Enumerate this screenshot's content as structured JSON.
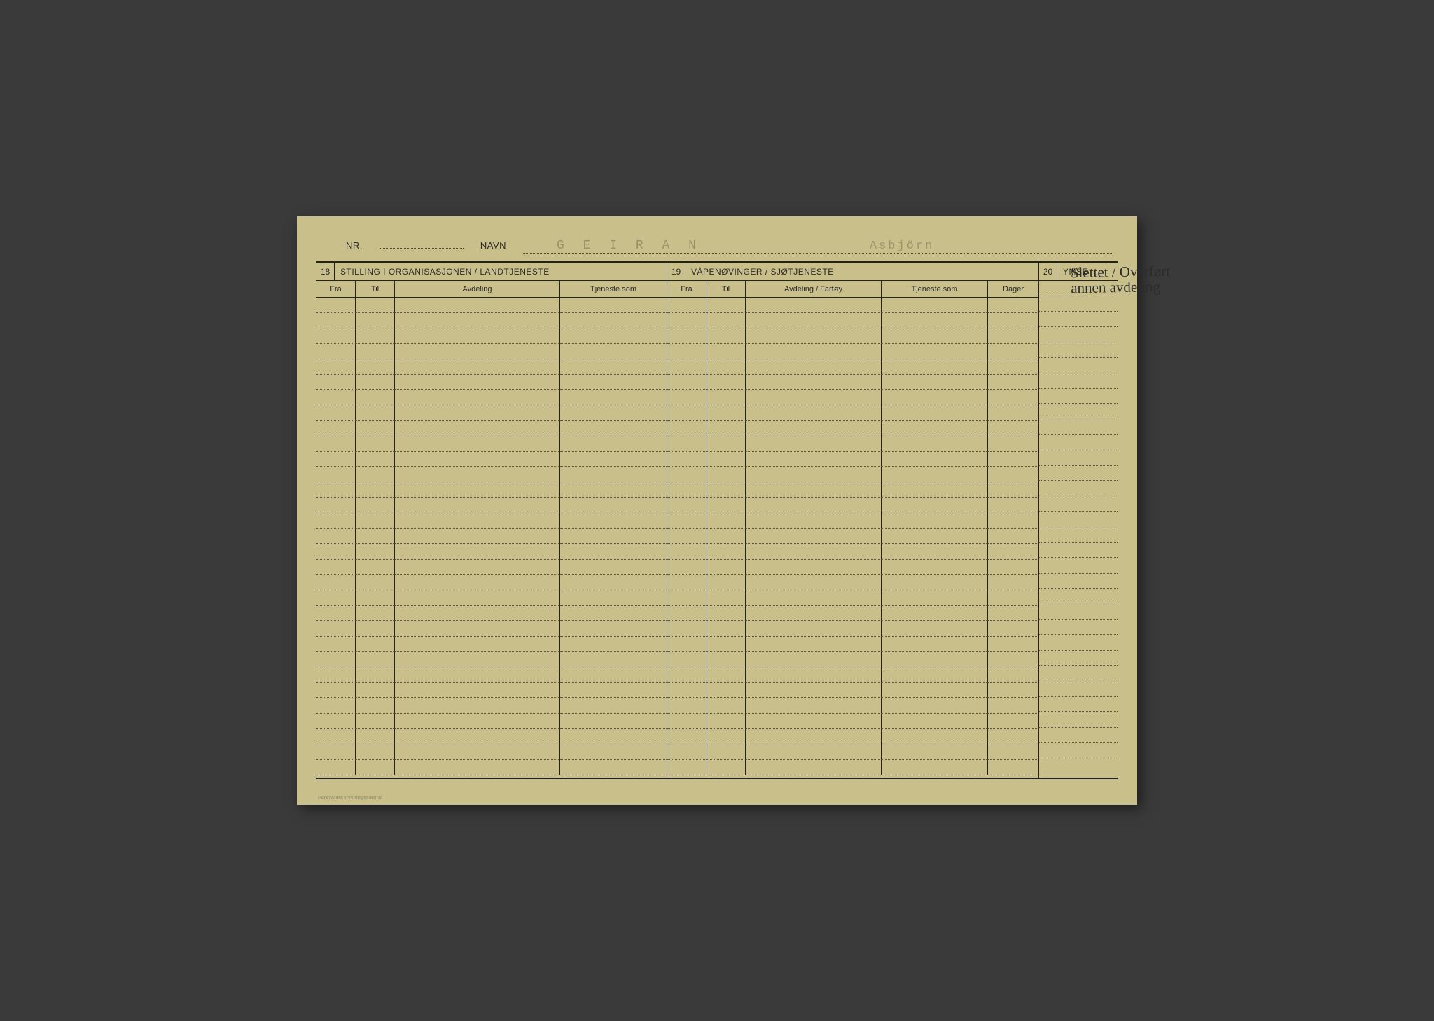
{
  "header": {
    "nr_label": "NR.",
    "navn_label": "NAVN",
    "surname": "G E I R A N",
    "firstname": "Asbjörn"
  },
  "section18": {
    "num": "18",
    "title": "STILLING I ORGANISASJONEN / LANDTJENESTE",
    "cols": {
      "fra": "Fra",
      "til": "Til",
      "avdeling": "Avdeling",
      "tjeneste": "Tjeneste som"
    }
  },
  "section19": {
    "num": "19",
    "title": "VÅPENØVINGER / SJØTJENESTE",
    "cols": {
      "fra": "Fra",
      "til": "Til",
      "avdeling": "Avdeling / Fartøy",
      "tjeneste": "Tjeneste som",
      "dager": "Dager"
    }
  },
  "section20": {
    "num": "20",
    "title": "YMSE",
    "handwriting_line1": "Slettet / Overført",
    "handwriting_line2": "annen avdeling"
  },
  "layout": {
    "row_count": 31,
    "card_bg": "#c9bf8a",
    "line_color": "#222222",
    "dotted_color": "#5a5542",
    "stamp_color": "#7a7256"
  },
  "footer": {
    "imprint": "Forsvarets trykningssentral"
  }
}
